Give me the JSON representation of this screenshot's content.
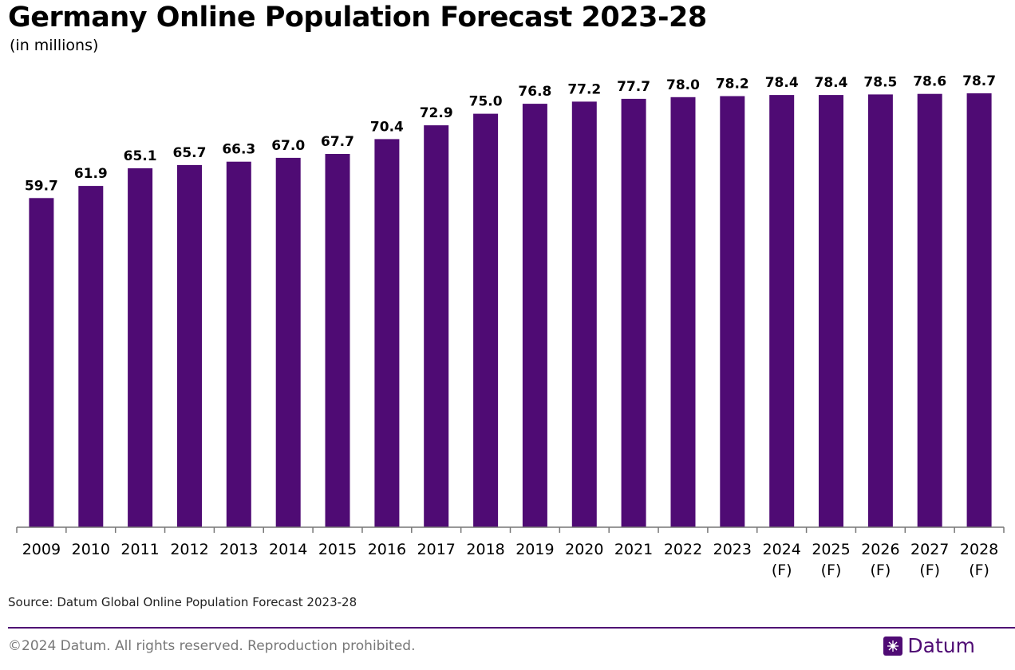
{
  "header": {
    "title": "Germany Online Population Forecast 2023-28",
    "subtitle": "(in millions)"
  },
  "chart_data": {
    "type": "bar",
    "title": "Germany Online Population Forecast 2023-28",
    "subtitle": "(in millions)",
    "categories": [
      "2009",
      "2010",
      "2011",
      "2012",
      "2013",
      "2014",
      "2015",
      "2016",
      "2017",
      "2018",
      "2019",
      "2020",
      "2021",
      "2022",
      "2023",
      "2024 (F)",
      "2025 (F)",
      "2026 (F)",
      "2027 (F)",
      "2028 (F)"
    ],
    "values": [
      59.7,
      61.9,
      65.1,
      65.7,
      66.3,
      67.0,
      67.7,
      70.4,
      72.9,
      75.0,
      76.8,
      77.2,
      77.7,
      78.0,
      78.2,
      78.4,
      78.4,
      78.5,
      78.6,
      78.7
    ],
    "value_labels": [
      "59.7",
      "61.9",
      "65.1",
      "65.7",
      "66.3",
      "67.0",
      "67.7",
      "70.4",
      "72.9",
      "75.0",
      "76.8",
      "77.2",
      "77.7",
      "78.0",
      "78.2",
      "78.4",
      "78.4",
      "78.5",
      "78.6",
      "78.7"
    ],
    "ylim": [
      0,
      78.7
    ],
    "grid": false,
    "legend": "none",
    "bar_color": "#4f0b74"
  },
  "footer": {
    "source": "Source: Datum Global Online Population Forecast 2023-28",
    "copyright": "©2024 Datum. All rights reserved. Reproduction prohibited.",
    "brand": "Datum",
    "brand_icon": "datum-logo-icon",
    "accent_color": "#4f0b74"
  }
}
